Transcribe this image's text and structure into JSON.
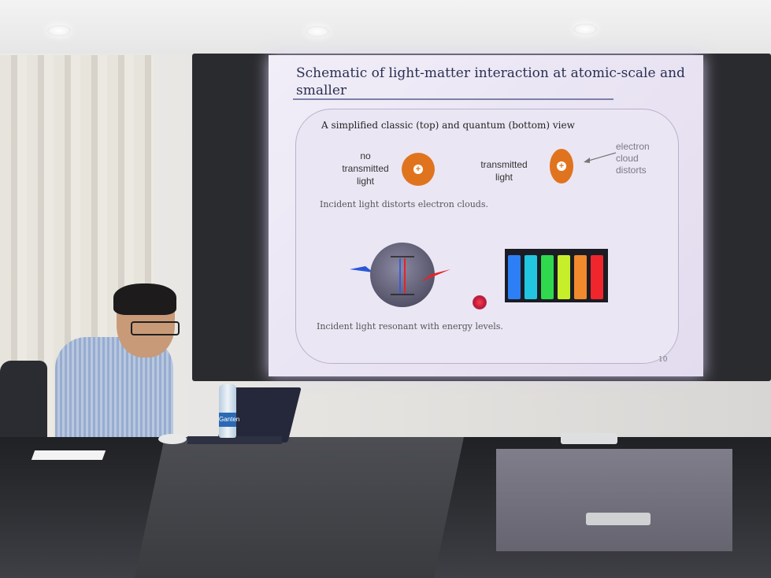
{
  "slide": {
    "title": "Schematic of light-matter interaction at atomic-scale and smaller",
    "subtitle": "A simplified classic (top) and quantum (bottom) view",
    "left_label": "no\ntransmitted\nlight",
    "right_label": "transmitted\nlight",
    "annotation": "electron\ncloud\ndistorts",
    "caption_top": "Incident light distorts electron clouds.",
    "caption_bottom": "Incident light resonant with energy levels.",
    "page_number": "10",
    "plus_symbol": "+"
  },
  "bottle": {
    "label": "Ganten"
  },
  "colors": {
    "atom": "#e0741e",
    "slide_bg": "#ebe6f4",
    "title_text": "#2a2f52",
    "cuvettes": [
      "#2d7ff5",
      "#23c6e0",
      "#30d84d",
      "#c6ef2a",
      "#f08a2c",
      "#f0262c"
    ]
  }
}
